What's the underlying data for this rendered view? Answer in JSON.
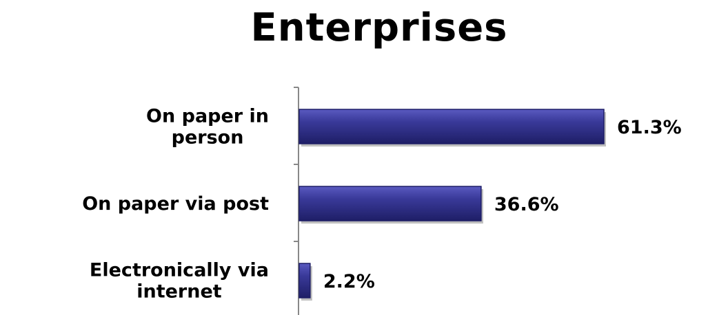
{
  "chart_data": {
    "type": "bar",
    "orientation": "horizontal",
    "title": "Enterprises",
    "categories": [
      [
        "On paper in",
        "person"
      ],
      [
        "On paper via post"
      ],
      [
        "Electronically via",
        "internet"
      ]
    ],
    "values": [
      61.3,
      36.6,
      2.2
    ],
    "data_labels": [
      "61.3%",
      "36.6%",
      "2.2%"
    ],
    "unit": "%",
    "xlim": [
      0,
      61.3
    ],
    "grid": false,
    "legend": "none",
    "colors": {
      "bar_fill": "#3A3A9A",
      "bar_edge": "#1E1E66",
      "bar_highlight": "#5A5AC0",
      "axis": "#888888"
    }
  }
}
